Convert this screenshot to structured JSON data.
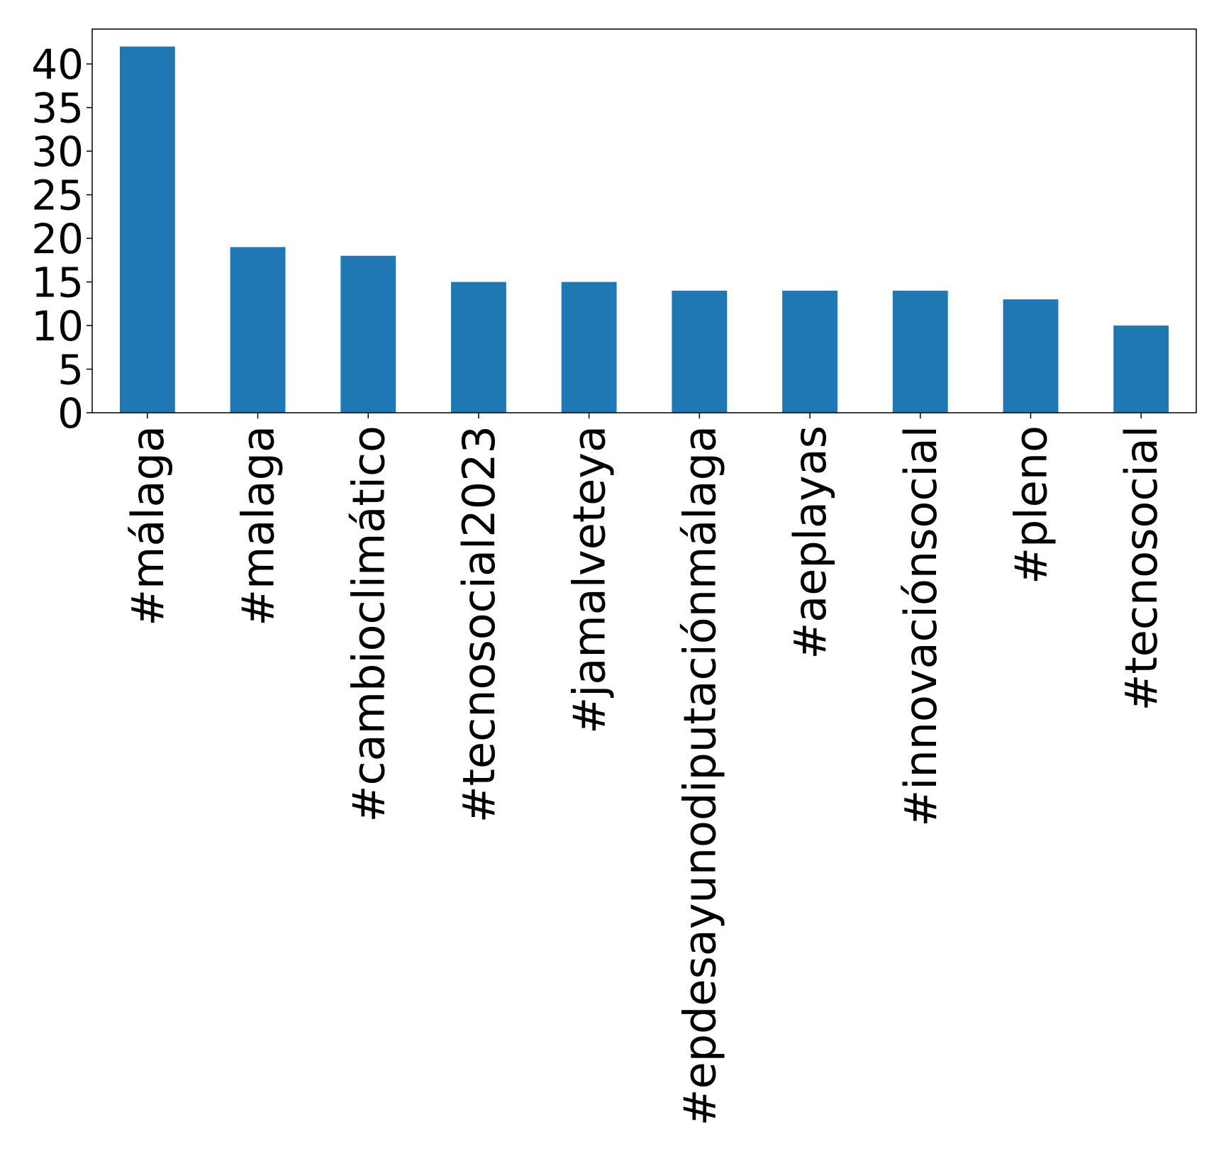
{
  "chart_data": {
    "type": "bar",
    "categories": [
      "#málaga",
      "#malaga",
      "#cambioclimático",
      "#tecnosocial2023",
      "#jamalveteya",
      "#epdesayunodiputaciónmálaga",
      "#aeplayas",
      "#innovaciónsocial",
      "#pleno",
      "#tecnosocial"
    ],
    "values": [
      42,
      19,
      18,
      15,
      15,
      14,
      14,
      14,
      13,
      10
    ],
    "yticks": [
      0,
      5,
      10,
      15,
      20,
      25,
      30,
      35,
      40
    ],
    "ylim": [
      0,
      44
    ],
    "title": "",
    "xlabel": "",
    "ylabel": "",
    "bar_color": "#1f77b4",
    "grid": false,
    "legend": "none"
  }
}
